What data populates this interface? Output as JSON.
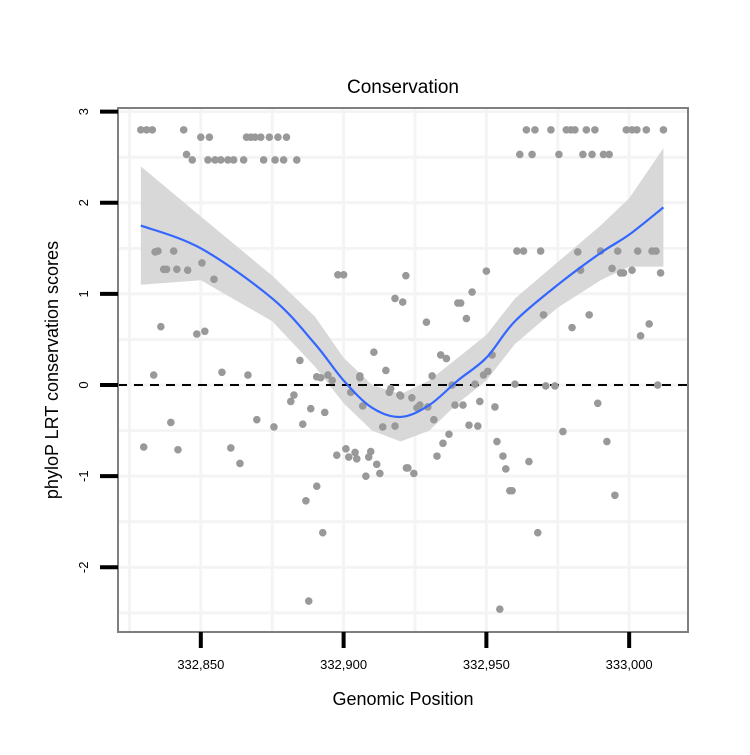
{
  "chart_data": {
    "type": "scatter",
    "title": "Conservation",
    "xlabel": "Genomic Position",
    "ylabel": "phyloP LRT conservation scores",
    "xlim": [
      332821,
      333020.6
    ],
    "ylim": [
      -2.71,
      3.04
    ],
    "x_ticks": [
      332850,
      332900,
      332950,
      333000
    ],
    "x_tick_labels": [
      "332,850",
      "332,900",
      "332,950",
      "333,000"
    ],
    "y_ticks": [
      3,
      2,
      1,
      0,
      -1,
      -2
    ],
    "y_tick_labels": [
      "3",
      "2",
      "1",
      "0",
      "-1",
      "-2"
    ],
    "grid": true,
    "reference_line": {
      "y": 0,
      "style": "dashed"
    },
    "colors": {
      "points": "#999999",
      "smooth": "#3366FF",
      "ribbon": "#D6D6D6",
      "border": "#7F7F7F",
      "grid": "#F4F4F4"
    },
    "points": [
      [
        332829,
        2.8
      ],
      [
        332831,
        2.8
      ],
      [
        332833,
        2.8
      ],
      [
        332844,
        2.8
      ],
      [
        332850,
        2.72
      ],
      [
        332853,
        2.72
      ],
      [
        332866,
        2.72
      ],
      [
        332867.5,
        2.72
      ],
      [
        332869,
        2.72
      ],
      [
        332871,
        2.72
      ],
      [
        332874,
        2.72
      ],
      [
        332877,
        2.72
      ],
      [
        332880,
        2.72
      ],
      [
        332845,
        2.53
      ],
      [
        332847,
        2.47
      ],
      [
        332852.5,
        2.47
      ],
      [
        332855,
        2.47
      ],
      [
        332857,
        2.47
      ],
      [
        332859.5,
        2.47
      ],
      [
        332861.5,
        2.47
      ],
      [
        332865,
        2.47
      ],
      [
        332872,
        2.47
      ],
      [
        332876,
        2.47
      ],
      [
        332879,
        2.47
      ],
      [
        332883.6,
        2.47
      ],
      [
        332964,
        2.8
      ],
      [
        332967,
        2.8
      ],
      [
        332972.6,
        2.8
      ],
      [
        332978,
        2.8
      ],
      [
        332979.6,
        2.8
      ],
      [
        332981,
        2.8
      ],
      [
        332985,
        2.8
      ],
      [
        332988,
        2.8
      ],
      [
        332999,
        2.8
      ],
      [
        333001,
        2.8
      ],
      [
        333002.7,
        2.8
      ],
      [
        333006,
        2.8
      ],
      [
        333012,
        2.8
      ],
      [
        332961.7,
        2.53
      ],
      [
        332966,
        2.53
      ],
      [
        332975.4,
        2.53
      ],
      [
        332983.8,
        2.53
      ],
      [
        332987,
        2.53
      ],
      [
        332991,
        2.53
      ],
      [
        332993,
        2.53
      ],
      [
        332921.8,
        1.2
      ],
      [
        332920.7,
        0.91
      ],
      [
        332918,
        0.95
      ],
      [
        332950,
        1.25
      ],
      [
        332945,
        1.02
      ],
      [
        332940,
        0.9
      ],
      [
        332941,
        0.9
      ],
      [
        332929,
        0.69
      ],
      [
        332943,
        0.73
      ],
      [
        332934,
        0.33
      ],
      [
        332936,
        0.29
      ],
      [
        332952,
        0.33
      ],
      [
        332931,
        0.1
      ],
      [
        332949,
        0.11
      ],
      [
        332950.5,
        0.15
      ],
      [
        332960.7,
        1.47
      ],
      [
        332963,
        1.47
      ],
      [
        332969,
        1.47
      ],
      [
        332982,
        1.46
      ],
      [
        332990,
        1.47
      ],
      [
        332996,
        1.47
      ],
      [
        333003,
        1.47
      ],
      [
        333008,
        1.47
      ],
      [
        333009.4,
        1.47
      ],
      [
        332983,
        1.26
      ],
      [
        332994,
        1.28
      ],
      [
        332997,
        1.23
      ],
      [
        332998,
        1.23
      ],
      [
        333001,
        1.26
      ],
      [
        333011,
        1.23
      ],
      [
        332970,
        0.77
      ],
      [
        332986,
        0.77
      ],
      [
        332980,
        0.63
      ],
      [
        333007,
        0.67
      ],
      [
        333004,
        0.54
      ],
      [
        332835,
        1.47
      ],
      [
        332834,
        1.46
      ],
      [
        332840.5,
        1.47
      ],
      [
        332838,
        1.27
      ],
      [
        332837,
        1.27
      ],
      [
        332841.6,
        1.27
      ],
      [
        332845.4,
        1.26
      ],
      [
        332850.4,
        1.34
      ],
      [
        332854.6,
        1.16
      ],
      [
        332836,
        0.64
      ],
      [
        332848.6,
        0.56
      ],
      [
        332851.4,
        0.59
      ],
      [
        332898,
        1.21
      ],
      [
        332900,
        1.21
      ],
      [
        332884.7,
        0.27
      ],
      [
        332910.6,
        0.36
      ],
      [
        332914.8,
        0.16
      ],
      [
        332905.7,
        0.1
      ],
      [
        332833.5,
        0.11
      ],
      [
        332857.4,
        0.14
      ],
      [
        332866.5,
        0.11
      ],
      [
        332839.5,
        -0.41
      ],
      [
        332830,
        -0.68
      ],
      [
        332842,
        -0.71
      ],
      [
        332860.5,
        -0.69
      ],
      [
        332863.7,
        -0.86
      ],
      [
        332869.6,
        -0.38
      ],
      [
        332875.6,
        -0.46
      ],
      [
        332885.7,
        -0.43
      ],
      [
        332881.5,
        -0.18
      ],
      [
        332882.6,
        -0.11
      ],
      [
        332888.5,
        -0.26
      ],
      [
        332893.4,
        -0.3
      ],
      [
        332890.6,
        0.09
      ],
      [
        332892,
        0.08
      ],
      [
        332894.5,
        0.11
      ],
      [
        332896,
        0.05
      ],
      [
        332902.5,
        -0.08
      ],
      [
        332905.7,
        0.08
      ],
      [
        332906.7,
        -0.23
      ],
      [
        332916,
        -0.08
      ],
      [
        332916.5,
        -0.04
      ],
      [
        332920,
        -0.12
      ],
      [
        332913.7,
        -0.46
      ],
      [
        332918,
        -0.45
      ],
      [
        332897.6,
        -0.77
      ],
      [
        332900.8,
        -0.7
      ],
      [
        332901.8,
        -0.79
      ],
      [
        332904,
        -0.74
      ],
      [
        332904.6,
        -0.81
      ],
      [
        332909.5,
        -0.73
      ],
      [
        332908.8,
        -0.79
      ],
      [
        332911.6,
        -0.87
      ],
      [
        332912.7,
        -0.97
      ],
      [
        332907.8,
        -1.0
      ],
      [
        332922,
        -0.91
      ],
      [
        332890.6,
        -1.11
      ],
      [
        332886.8,
        -1.27
      ],
      [
        332892.7,
        -1.62
      ],
      [
        332887.8,
        -2.37
      ],
      [
        332919.7,
        -0.11
      ],
      [
        332923.9,
        -0.14
      ],
      [
        332926.7,
        -0.22
      ],
      [
        332925.7,
        -0.25
      ],
      [
        332929.5,
        -0.24
      ],
      [
        332938,
        0
      ],
      [
        332946,
        0.01
      ],
      [
        332960,
        0.01
      ],
      [
        332970.8,
        -0.01
      ],
      [
        332974,
        -0.01
      ],
      [
        333010,
        0
      ],
      [
        332939,
        -0.22
      ],
      [
        332941.8,
        -0.22
      ],
      [
        332947.7,
        -0.18
      ],
      [
        332953,
        -0.24
      ],
      [
        332931.6,
        -0.38
      ],
      [
        332943.9,
        -0.44
      ],
      [
        332947,
        -0.45
      ],
      [
        332936.9,
        -0.54
      ],
      [
        332934.8,
        -0.64
      ],
      [
        332932.7,
        -0.78
      ],
      [
        332922.5,
        -0.91
      ],
      [
        332924.6,
        -0.97
      ],
      [
        332953.7,
        -0.62
      ],
      [
        332955.8,
        -0.78
      ],
      [
        332956.8,
        -0.92
      ],
      [
        332958.2,
        -1.16
      ],
      [
        332959,
        -1.16
      ],
      [
        332964.9,
        -0.84
      ],
      [
        332976.8,
        -0.51
      ],
      [
        332989,
        -0.2
      ],
      [
        332992.2,
        -0.62
      ],
      [
        332995,
        -1.21
      ],
      [
        332968,
        -1.62
      ],
      [
        332954.7,
        -2.46
      ]
    ],
    "smooth": {
      "x": [
        332829,
        332850,
        332875,
        332890,
        332900,
        332910,
        332920,
        332930,
        332940,
        332950,
        332960,
        332975,
        332990,
        333000,
        333012
      ],
      "y": [
        1.75,
        1.5,
        0.95,
        0.45,
        0.05,
        -0.25,
        -0.35,
        -0.22,
        0.05,
        0.3,
        0.7,
        1.1,
        1.45,
        1.65,
        1.95
      ],
      "upper": [
        2.4,
        1.85,
        1.2,
        0.75,
        0.3,
        0.0,
        -0.1,
        0.05,
        0.3,
        0.55,
        0.95,
        1.35,
        1.75,
        2.05,
        2.6
      ],
      "lower": [
        1.1,
        1.15,
        0.7,
        0.2,
        -0.2,
        -0.5,
        -0.62,
        -0.5,
        -0.2,
        0.05,
        0.45,
        0.85,
        1.15,
        1.3,
        1.3
      ]
    }
  }
}
